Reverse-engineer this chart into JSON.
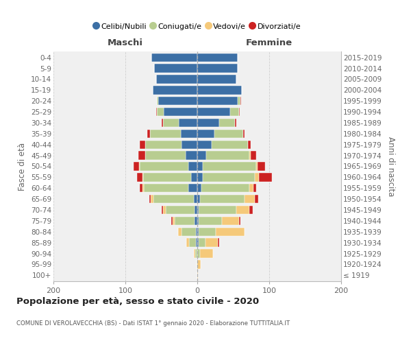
{
  "age_groups": [
    "100+",
    "95-99",
    "90-94",
    "85-89",
    "80-84",
    "75-79",
    "70-74",
    "65-69",
    "60-64",
    "55-59",
    "50-54",
    "45-49",
    "40-44",
    "35-39",
    "30-34",
    "25-29",
    "20-24",
    "15-19",
    "10-14",
    "5-9",
    "0-4"
  ],
  "birth_years": [
    "≤ 1919",
    "1920-1924",
    "1925-1929",
    "1930-1934",
    "1935-1939",
    "1940-1944",
    "1945-1949",
    "1950-1954",
    "1955-1959",
    "1960-1964",
    "1965-1969",
    "1970-1974",
    "1975-1979",
    "1980-1984",
    "1985-1989",
    "1990-1994",
    "1995-1999",
    "2000-2004",
    "2005-2009",
    "2010-2014",
    "2015-2019"
  ],
  "colors": {
    "celibi": "#3c6fa5",
    "coniugati": "#b8cd90",
    "vedovi": "#f5c97a",
    "divorziati": "#cc2222"
  },
  "males": {
    "celibi": [
      0,
      0,
      0,
      2,
      2,
      4,
      4,
      5,
      12,
      9,
      12,
      16,
      22,
      23,
      26,
      47,
      54,
      62,
      57,
      60,
      64
    ],
    "coniugati": [
      0,
      1,
      3,
      9,
      20,
      27,
      40,
      56,
      62,
      66,
      68,
      56,
      50,
      43,
      22,
      9,
      2,
      0,
      0,
      0,
      0
    ],
    "vedovi": [
      0,
      0,
      2,
      4,
      5,
      3,
      4,
      4,
      2,
      1,
      1,
      0,
      0,
      0,
      0,
      0,
      0,
      0,
      0,
      0,
      0
    ],
    "divorziati": [
      0,
      0,
      0,
      0,
      0,
      2,
      2,
      2,
      4,
      8,
      8,
      10,
      8,
      4,
      2,
      1,
      0,
      0,
      0,
      0,
      0
    ]
  },
  "females": {
    "celibi": [
      0,
      0,
      0,
      2,
      2,
      2,
      2,
      4,
      6,
      8,
      8,
      12,
      20,
      24,
      30,
      46,
      56,
      62,
      54,
      56,
      56
    ],
    "coniugati": [
      0,
      0,
      4,
      9,
      24,
      32,
      52,
      62,
      66,
      72,
      74,
      60,
      50,
      40,
      22,
      12,
      4,
      0,
      0,
      0,
      0
    ],
    "vedovi": [
      1,
      5,
      18,
      18,
      40,
      24,
      18,
      14,
      6,
      6,
      2,
      2,
      0,
      0,
      0,
      0,
      0,
      0,
      0,
      0,
      0
    ],
    "divorziati": [
      0,
      0,
      0,
      1,
      0,
      2,
      5,
      5,
      4,
      18,
      10,
      8,
      4,
      2,
      2,
      1,
      1,
      0,
      0,
      0,
      0
    ]
  },
  "xlim": 200,
  "xticks": [
    -200,
    -100,
    0,
    100,
    200
  ],
  "title": "Popolazione per età, sesso e stato civile - 2020",
  "subtitle": "COMUNE DI VEROLAVECCHIA (BS) - Dati ISTAT 1° gennaio 2020 - Elaborazione TUTTITALIA.IT",
  "header_left": "Maschi",
  "header_right": "Femmine",
  "ylabel_left": "Fasce di età",
  "ylabel_right": "Anni di nascita",
  "legend_labels": [
    "Celibi/Nubili",
    "Coniugati/e",
    "Vedovi/e",
    "Divorziati/e"
  ],
  "bg_color": "#f0f0f0",
  "grid_color": "#cccccc"
}
